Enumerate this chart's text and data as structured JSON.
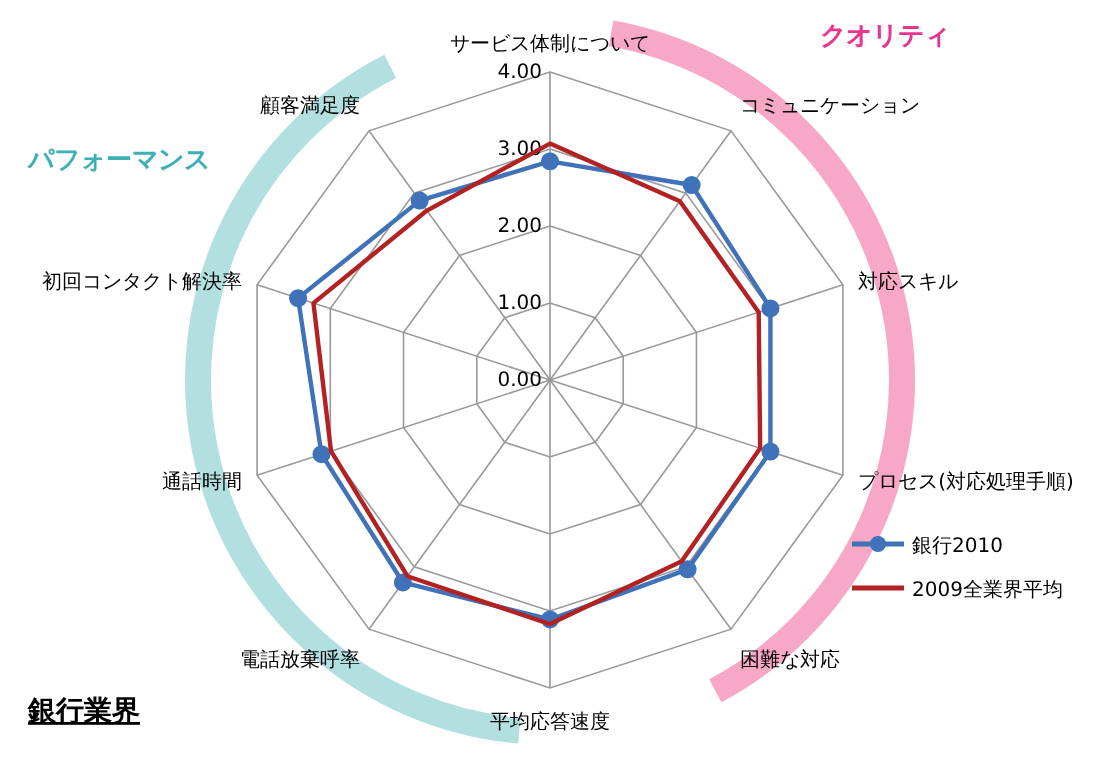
{
  "chart_data": {
    "type": "radar",
    "title": "銀行業界",
    "categories": [
      "サービス体制について",
      "コミュニケーション",
      "対応スキル",
      "プロセス(対応処理手順)",
      "困難な対応",
      "平均応答速度",
      "電話放棄呼率",
      "通話時間",
      "初回コンタクト解決率",
      "顧客満足度"
    ],
    "series": [
      {
        "name": "銀行2010",
        "color": "#3f72b8",
        "marker": "circle",
        "values": [
          2.84,
          3.13,
          3.01,
          3.01,
          3.04,
          3.11,
          3.25,
          3.12,
          3.44,
          2.88
        ]
      },
      {
        "name": "2009全業界平均",
        "color": "#b22222",
        "marker": "none",
        "values": [
          3.07,
          2.87,
          2.85,
          2.87,
          2.91,
          3.17,
          3.15,
          2.99,
          3.23,
          2.72
        ]
      }
    ],
    "ylim": [
      0,
      4
    ],
    "yticks": [
      {
        "value": 0,
        "label": "0.00"
      },
      {
        "value": 1,
        "label": "1.00"
      },
      {
        "value": 2,
        "label": "2.00"
      },
      {
        "value": 3,
        "label": "3.00"
      },
      {
        "value": 4,
        "label": "4.00"
      }
    ],
    "grid": true,
    "legend": "right",
    "annotations": [
      "クオリティ",
      "パフォーマンス"
    ]
  }
}
